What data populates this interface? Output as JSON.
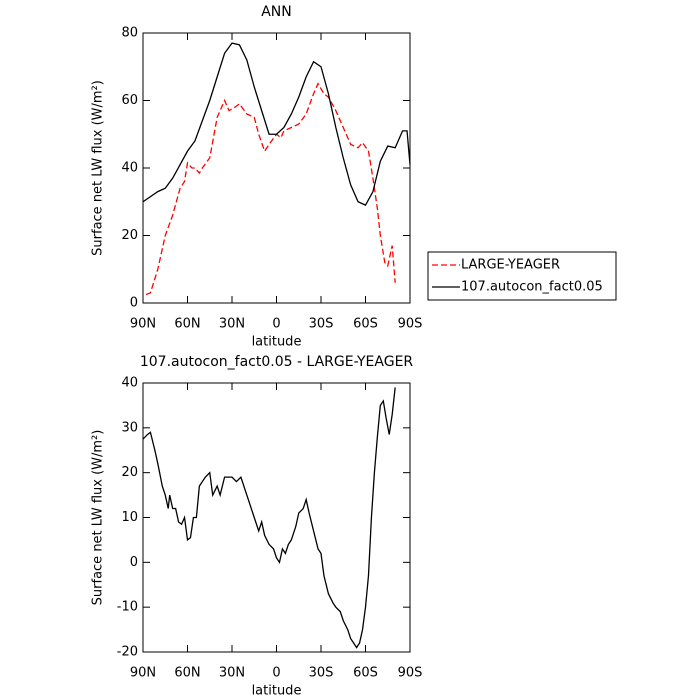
{
  "chart_data": [
    {
      "type": "line",
      "title": "ANN",
      "xlabel": "latitude",
      "ylabel": "Surface net LW flux (W/m²)",
      "xlim": [
        90,
        -90
      ],
      "xticks": [
        {
          "value": 90,
          "label": "90N"
        },
        {
          "value": 60,
          "label": "60N"
        },
        {
          "value": 30,
          "label": "30N"
        },
        0,
        {
          "value": -30,
          "label": "30S"
        },
        {
          "value": -60,
          "label": "60S"
        },
        {
          "value": -90,
          "label": "90S"
        }
      ],
      "ylim": [
        0,
        80
      ],
      "yticks": [
        0,
        20,
        40,
        60,
        80
      ],
      "legend": "right",
      "series": [
        {
          "name": "LARGE-YEAGER",
          "color": "#ff0000",
          "line_style": "dashed",
          "x": [
            88,
            85,
            80,
            75,
            70,
            65,
            62,
            60,
            57,
            55,
            52,
            50,
            45,
            40,
            35,
            32,
            28,
            25,
            20,
            15,
            12,
            8,
            5,
            0,
            -3,
            -5,
            -10,
            -15,
            -20,
            -25,
            -28,
            -32,
            -35,
            -40,
            -45,
            -50,
            -55,
            -58,
            -62,
            -65,
            -68,
            -70,
            -73,
            -75,
            -78,
            -80
          ],
          "values": [
            2.5,
            3,
            10,
            20,
            26,
            34,
            36,
            41.5,
            40,
            40,
            38.5,
            40,
            43,
            55,
            60,
            57,
            58,
            59,
            56,
            55,
            50,
            45,
            47,
            50,
            49,
            51,
            52,
            53,
            56,
            62,
            65,
            62,
            61,
            57,
            52,
            47,
            46,
            47.5,
            45,
            37,
            28,
            20,
            12,
            11,
            17,
            6
          ]
        },
        {
          "name": "107.autocon_fact0.05",
          "color": "#000000",
          "line_style": "solid",
          "x": [
            90,
            80,
            75,
            70,
            65,
            60,
            55,
            50,
            45,
            40,
            35,
            30,
            25,
            20,
            15,
            10,
            5,
            0,
            -5,
            -10,
            -15,
            -20,
            -25,
            -30,
            -35,
            -40,
            -45,
            -50,
            -55,
            -60,
            -65,
            -70,
            -75,
            -80,
            -85,
            -88,
            -90
          ],
          "values": [
            30,
            33,
            34,
            37,
            41,
            45,
            48,
            54,
            60,
            67,
            74,
            77,
            76.5,
            72,
            64,
            57,
            50,
            50,
            52,
            56,
            61,
            67,
            71.5,
            70,
            62,
            52,
            43,
            35,
            30,
            29,
            33,
            42,
            46.5,
            46,
            51,
            51,
            41
          ]
        }
      ]
    },
    {
      "type": "line",
      "title": "107.autocon_fact0.05 - LARGE-YEAGER",
      "xlabel": "latitude",
      "ylabel": "Surface net LW flux (W/m²)",
      "xlim": [
        90,
        -90
      ],
      "xticks": [
        {
          "value": 90,
          "label": "90N"
        },
        {
          "value": 60,
          "label": "60N"
        },
        {
          "value": 30,
          "label": "30N"
        },
        0,
        {
          "value": -30,
          "label": "30S"
        },
        {
          "value": -60,
          "label": "60S"
        },
        {
          "value": -90,
          "label": "90S"
        }
      ],
      "ylim": [
        -20,
        40
      ],
      "yticks": [
        -20,
        -10,
        0,
        10,
        20,
        30,
        40
      ],
      "series": [
        {
          "color": "#000000",
          "line_style": "solid",
          "x": [
            90,
            87,
            85,
            82,
            80,
            77,
            75,
            73,
            72,
            70,
            68,
            66,
            64,
            62,
            60,
            58,
            56,
            54,
            52,
            48,
            45,
            43,
            40,
            38,
            35,
            30,
            27,
            24,
            20,
            15,
            12,
            10,
            8,
            5,
            2,
            0,
            -2,
            -4,
            -6,
            -8,
            -10,
            -13,
            -15,
            -18,
            -20,
            -22,
            -25,
            -28,
            -30,
            -32,
            -35,
            -38,
            -40,
            -43,
            -45,
            -48,
            -50,
            -52,
            -54,
            -56,
            -58,
            -60,
            -62,
            -64,
            -66,
            -68,
            -70,
            -72,
            -74,
            -76,
            -78,
            -80
          ],
          "values": [
            27.5,
            28.5,
            29,
            25,
            22,
            17,
            15,
            12,
            15,
            12,
            12,
            9,
            8.5,
            10,
            5,
            5.5,
            10,
            10,
            17,
            19,
            20,
            15,
            17,
            15,
            19,
            19,
            18,
            19,
            15,
            10,
            7,
            9,
            6,
            4,
            3,
            1,
            0,
            3,
            2,
            4,
            5,
            8,
            11,
            12,
            14,
            11,
            7,
            3,
            2,
            -3,
            -7,
            -9,
            -10,
            -11,
            -13,
            -15,
            -17,
            -18,
            -19,
            -18,
            -15,
            -10,
            -3,
            10,
            20,
            28,
            35,
            36,
            32,
            28.5,
            33,
            39
          ]
        }
      ]
    }
  ]
}
